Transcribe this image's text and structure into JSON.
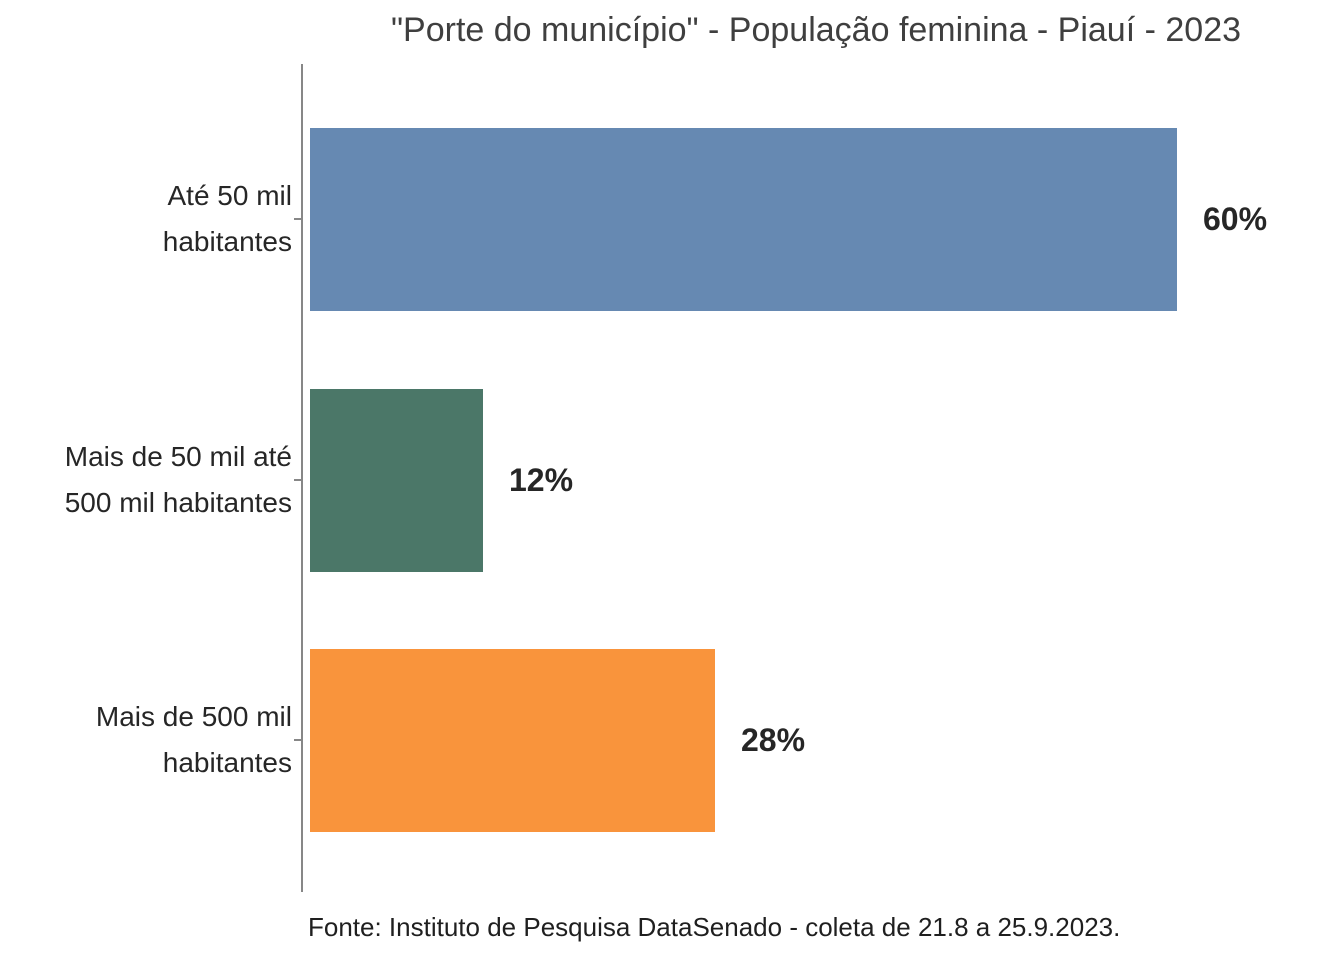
{
  "title": "\"Porte do município\" - População feminina - Piauí - 2023",
  "footer": {
    "source_text": "Fonte: Instituto de Pesquisa DataSenado - coleta de 21.8 a 25.9.2023."
  },
  "chart_data": {
    "type": "bar",
    "orientation": "horizontal",
    "title": "\"Porte do município\" - População feminina - Piauí - 2023",
    "categories": [
      "Até 50 mil habitantes",
      "Mais de 50 mil até 500 mil habitantes",
      "Mais de 500 mil habitantes"
    ],
    "values": [
      60,
      12,
      28
    ],
    "unit": "%",
    "xlim": [
      0,
      100
    ],
    "grid": false,
    "legend": false,
    "axis_color": "#878787",
    "source": "Fonte: Instituto de Pesquisa DataSenado - coleta de 21.8 a 25.9.2023.",
    "rows": [
      {
        "label_display": "Até 50 mil\nhabitantes",
        "value": 60,
        "value_label": "60%",
        "color": "#6689b2"
      },
      {
        "label_display": "Mais de 50 mil até\n500 mil habitantes",
        "value": 12,
        "value_label": "12%",
        "color": "#4b7768"
      },
      {
        "label_display": "Mais de 500 mil\nhabitantes",
        "value": 28,
        "value_label": "28%",
        "color": "#f9943c"
      }
    ]
  }
}
